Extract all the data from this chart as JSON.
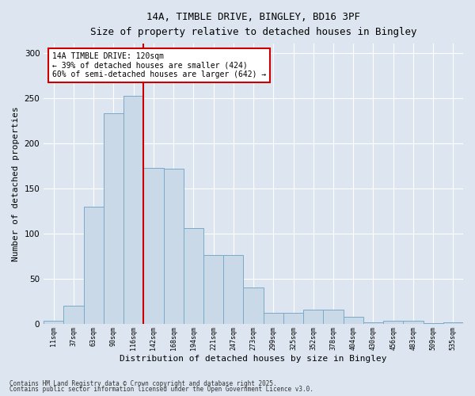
{
  "title1": "14A, TIMBLE DRIVE, BINGLEY, BD16 3PF",
  "title2": "Size of property relative to detached houses in Bingley",
  "xlabel": "Distribution of detached houses by size in Bingley",
  "ylabel": "Number of detached properties",
  "bins": [
    "11sqm",
    "37sqm",
    "63sqm",
    "90sqm",
    "116sqm",
    "142sqm",
    "168sqm",
    "194sqm",
    "221sqm",
    "247sqm",
    "273sqm",
    "299sqm",
    "325sqm",
    "352sqm",
    "378sqm",
    "404sqm",
    "430sqm",
    "456sqm",
    "483sqm",
    "509sqm",
    "535sqm"
  ],
  "values": [
    4,
    20,
    130,
    233,
    252,
    173,
    172,
    106,
    76,
    76,
    40,
    12,
    12,
    16,
    16,
    8,
    2,
    4,
    4,
    1,
    2
  ],
  "bar_color": "#c9d9e8",
  "bar_edge_color": "#7aaac8",
  "vline_x_index": 4,
  "vline_color": "#cc0000",
  "annotation_text": "14A TIMBLE DRIVE: 120sqm\n← 39% of detached houses are smaller (424)\n60% of semi-detached houses are larger (642) →",
  "annotation_box_color": "#ffffff",
  "annotation_box_edge": "#cc0000",
  "background_color": "#dde6f0",
  "plot_bg_color": "#dde6f0",
  "grid_color": "#ffffff",
  "footnote1": "Contains HM Land Registry data © Crown copyright and database right 2025.",
  "footnote2": "Contains public sector information licensed under the Open Government Licence v3.0.",
  "ylim": [
    0,
    310
  ],
  "yticks": [
    0,
    50,
    100,
    150,
    200,
    250,
    300
  ]
}
